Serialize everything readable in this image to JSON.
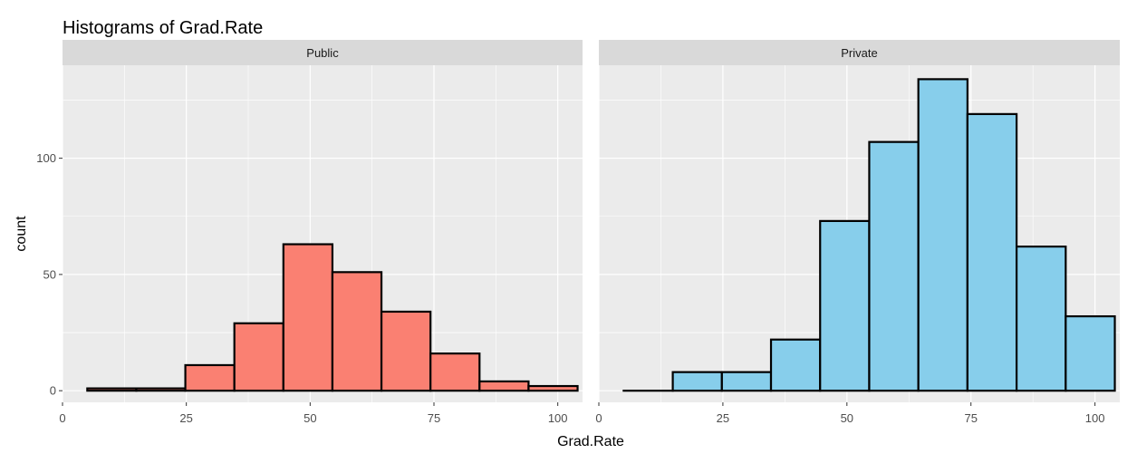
{
  "chart_data": {
    "type": "bar",
    "title": "Histograms of Grad.Rate",
    "xlabel": "Grad.Rate",
    "ylabel": "count",
    "facet_layout": "horizontal",
    "shared_y_axis": true,
    "grid": true,
    "legend": "none",
    "xlim": [
      0,
      105
    ],
    "ylim": [
      -5,
      140
    ],
    "x_ticks": [
      0,
      25,
      50,
      75,
      100
    ],
    "y_ticks": [
      0,
      50,
      100
    ],
    "bin_width": 9.9,
    "bin_edges": [
      5,
      14.9,
      24.8,
      34.7,
      44.6,
      54.5,
      64.4,
      74.3,
      84.2,
      94.1,
      104
    ],
    "colors": {
      "panel_background": "#ebebeb",
      "strip_background": "#d9d9d9",
      "grid_line": "#ffffff",
      "bar_outline": "#000000"
    },
    "panels": [
      {
        "name": "Public",
        "fill": "#fa8072",
        "counts": [
          1,
          1,
          11,
          29,
          63,
          51,
          34,
          16,
          4,
          2
        ]
      },
      {
        "name": "Private",
        "fill": "#87ceeb",
        "counts": [
          0,
          8,
          8,
          22,
          73,
          107,
          134,
          119,
          62,
          32
        ]
      }
    ]
  }
}
